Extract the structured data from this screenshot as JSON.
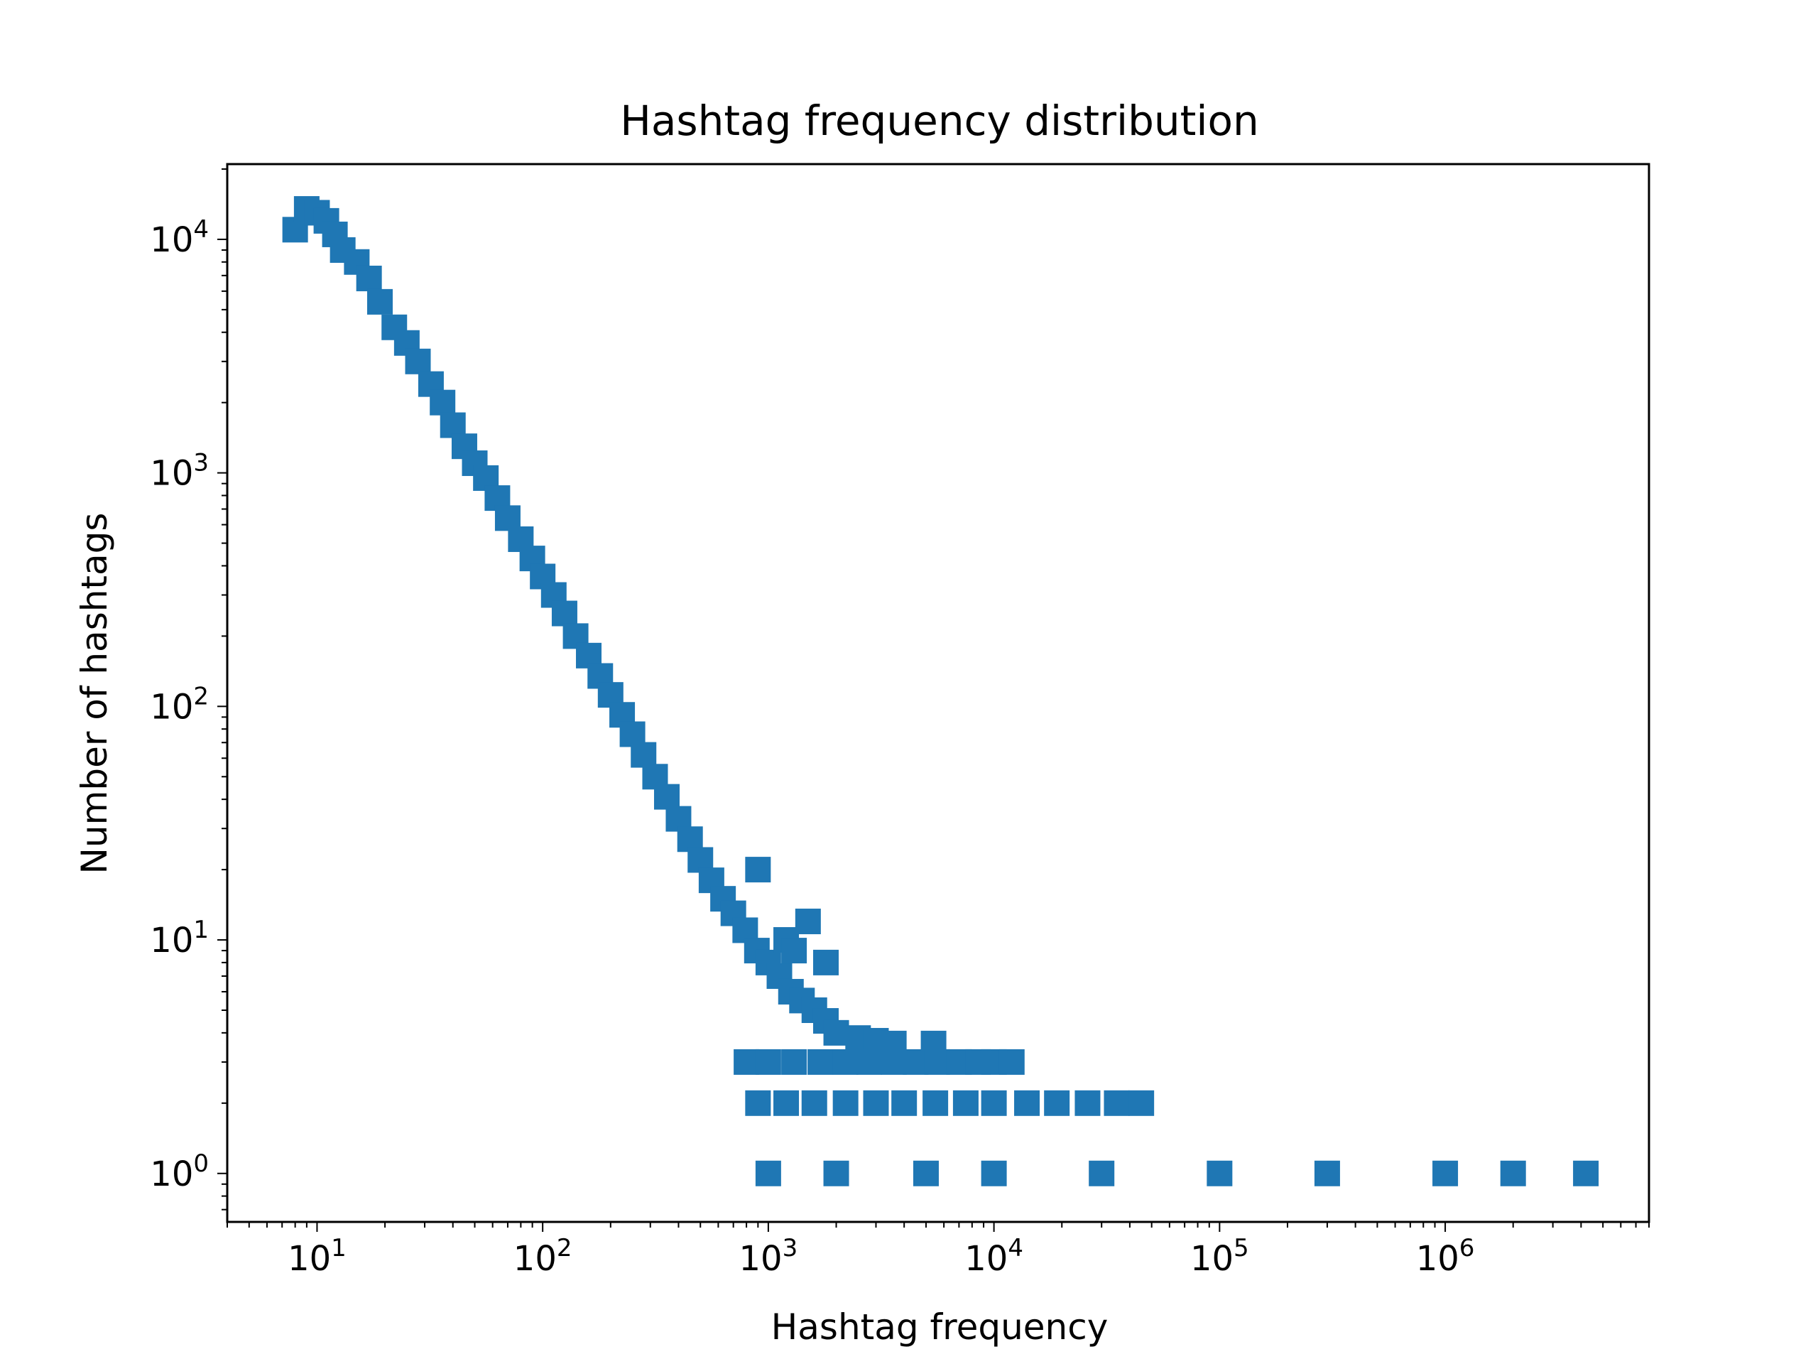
{
  "chart_data": {
    "type": "scatter",
    "title": "Hashtag frequency distribution",
    "xlabel": "Hashtag frequency",
    "ylabel": "Number of hashtags",
    "x_scale": "log",
    "y_scale": "log",
    "xlim": [
      4,
      8000000
    ],
    "ylim": [
      0.62,
      21000
    ],
    "grid": false,
    "marker": "square",
    "color": "#1f77b4",
    "x_ticks": [
      {
        "value": 10,
        "base": "10",
        "exp": "1"
      },
      {
        "value": 100,
        "base": "10",
        "exp": "2"
      },
      {
        "value": 1000,
        "base": "10",
        "exp": "3"
      },
      {
        "value": 10000,
        "base": "10",
        "exp": "4"
      },
      {
        "value": 100000,
        "base": "10",
        "exp": "5"
      },
      {
        "value": 1000000,
        "base": "10",
        "exp": "6"
      }
    ],
    "y_ticks": [
      {
        "value": 1,
        "base": "10",
        "exp": "0"
      },
      {
        "value": 10,
        "base": "10",
        "exp": "1"
      },
      {
        "value": 100,
        "base": "10",
        "exp": "2"
      },
      {
        "value": 1000,
        "base": "10",
        "exp": "3"
      },
      {
        "value": 10000,
        "base": "10",
        "exp": "4"
      }
    ],
    "series": [
      {
        "points": [
          [
            8,
            11000
          ],
          [
            9,
            13500
          ],
          [
            10,
            13000
          ],
          [
            11,
            12000
          ],
          [
            12,
            10500
          ],
          [
            13,
            9000
          ],
          [
            15,
            8000
          ],
          [
            17,
            6800
          ],
          [
            19,
            5400
          ],
          [
            22,
            4200
          ],
          [
            25,
            3600
          ],
          [
            28,
            3000
          ],
          [
            32,
            2400
          ],
          [
            36,
            2000
          ],
          [
            40,
            1600
          ],
          [
            45,
            1300
          ],
          [
            50,
            1100
          ],
          [
            56,
            950
          ],
          [
            63,
            780
          ],
          [
            70,
            640
          ],
          [
            80,
            520
          ],
          [
            90,
            430
          ],
          [
            100,
            360
          ],
          [
            112,
            300
          ],
          [
            125,
            250
          ],
          [
            140,
            200
          ],
          [
            160,
            165
          ],
          [
            180,
            135
          ],
          [
            200,
            112
          ],
          [
            225,
            92
          ],
          [
            250,
            76
          ],
          [
            280,
            62
          ],
          [
            315,
            50
          ],
          [
            355,
            41
          ],
          [
            400,
            33
          ],
          [
            450,
            27
          ],
          [
            500,
            22
          ],
          [
            560,
            18
          ],
          [
            630,
            15
          ],
          [
            700,
            13
          ],
          [
            790,
            11
          ],
          [
            890,
            9
          ],
          [
            1000,
            8
          ],
          [
            1120,
            7
          ],
          [
            1260,
            6
          ],
          [
            1410,
            5.5
          ],
          [
            1600,
            5
          ],
          [
            1800,
            4.5
          ],
          [
            2000,
            4
          ],
          [
            2500,
            3.8
          ],
          [
            3000,
            3.7
          ],
          [
            3600,
            3.6
          ],
          [
            5400,
            3.6
          ],
          [
            1200,
            10
          ],
          [
            1500,
            12
          ],
          [
            900,
            20
          ],
          [
            1300,
            9
          ],
          [
            1800,
            8
          ],
          [
            800,
            3
          ],
          [
            1000,
            3
          ],
          [
            1300,
            3
          ],
          [
            1700,
            3
          ],
          [
            2200,
            3
          ],
          [
            2800,
            3
          ],
          [
            3600,
            3
          ],
          [
            4500,
            3
          ],
          [
            5600,
            3
          ],
          [
            7000,
            3
          ],
          [
            8500,
            3
          ],
          [
            10000,
            3
          ],
          [
            12000,
            3
          ],
          [
            900,
            2
          ],
          [
            1200,
            2
          ],
          [
            1600,
            2
          ],
          [
            2200,
            2
          ],
          [
            3000,
            2
          ],
          [
            4000,
            2
          ],
          [
            5500,
            2
          ],
          [
            7500,
            2
          ],
          [
            10000,
            2
          ],
          [
            14000,
            2
          ],
          [
            19000,
            2
          ],
          [
            26000,
            2
          ],
          [
            35000,
            2
          ],
          [
            45000,
            2
          ],
          [
            1000,
            1
          ],
          [
            2000,
            1
          ],
          [
            5000,
            1
          ],
          [
            10000,
            1
          ],
          [
            30000,
            1
          ],
          [
            100000,
            1
          ],
          [
            300000,
            1
          ],
          [
            1000000,
            1
          ],
          [
            2000000,
            1
          ],
          [
            4200000,
            1
          ]
        ]
      }
    ]
  }
}
